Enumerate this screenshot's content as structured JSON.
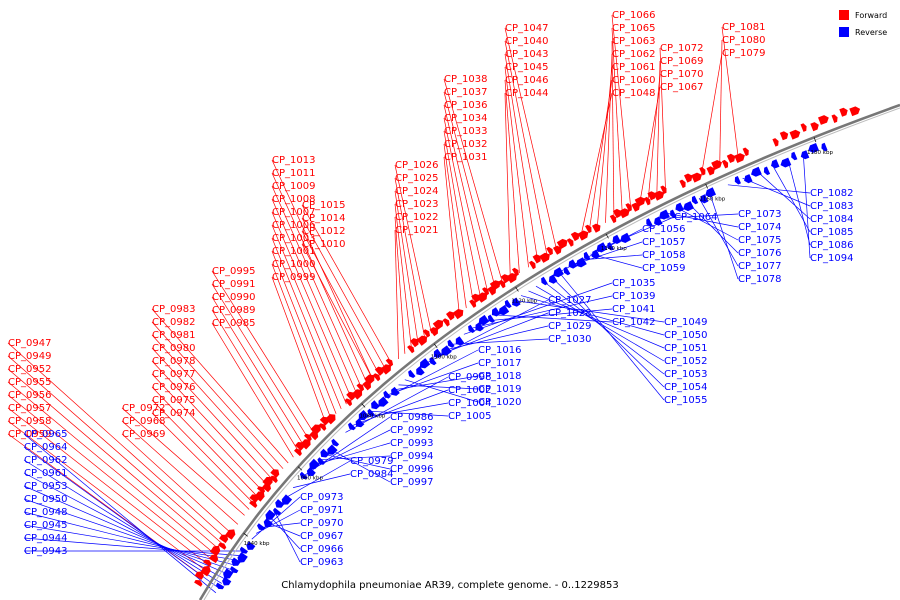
{
  "title": "Chlamydophila pneumoniae AR39, complete genome. - 0..1229853",
  "legend": [
    {
      "label": "Forward",
      "color": "#ff0000"
    },
    {
      "label": "Reverse",
      "color": "#0000ff"
    }
  ],
  "colors": {
    "forward": "#ff0000",
    "reverse": "#0000ff",
    "backbone": "#777777"
  },
  "ticks": [
    "1040 kbp",
    "1060 kbp",
    "1080 kbp",
    "1100 kbp",
    "1120 kbp",
    "1140 kbp",
    "1160 kbp",
    "1180 kbp"
  ],
  "forward_labels": [
    "CP_0959",
    "CP_0958",
    "CP_0957",
    "CP_0956",
    "CP_0955",
    "CP_0952",
    "CP_0949",
    "CP_0947",
    "CP_0969",
    "CP_0968",
    "CP_0972",
    "CP_0974",
    "CP_0975",
    "CP_0976",
    "CP_0977",
    "CP_0978",
    "CP_0980",
    "CP_0981",
    "CP_0982",
    "CP_0983",
    "CP_0985",
    "CP_0989",
    "CP_0990",
    "CP_0991",
    "CP_0995",
    "CP_0999",
    "CP_1000",
    "CP_1001",
    "CP_1003",
    "CP_1006",
    "CP_1007",
    "CP_1008",
    "CP_1009",
    "CP_1011",
    "CP_1013",
    "CP_1010",
    "CP_1012",
    "CP_1014",
    "CP_1015",
    "CP_1021",
    "CP_1022",
    "CP_1023",
    "CP_1024",
    "CP_1025",
    "CP_1026",
    "CP_1031",
    "CP_1032",
    "CP_1033",
    "CP_1034",
    "CP_1036",
    "CP_1037",
    "CP_1038",
    "CP_1044",
    "CP_1046",
    "CP_1045",
    "CP_1043",
    "CP_1040",
    "CP_1047",
    "CP_1048",
    "CP_1060",
    "CP_1061",
    "CP_1062",
    "CP_1063",
    "CP_1065",
    "CP_1066",
    "CP_1067",
    "CP_1070",
    "CP_1069",
    "CP_1072",
    "CP_1079",
    "CP_1080",
    "CP_1081"
  ],
  "reverse_labels": [
    "CP_0965",
    "CP_0964",
    "CP_0962",
    "CP_0961",
    "CP_0953",
    "CP_0950",
    "CP_0948",
    "CP_0945",
    "CP_0944",
    "CP_0943",
    "CP_0973",
    "CP_0971",
    "CP_0970",
    "CP_0967",
    "CP_0966",
    "CP_0963",
    "CP_0979",
    "CP_0984",
    "CP_0986",
    "CP_0992",
    "CP_0993",
    "CP_0994",
    "CP_0996",
    "CP_0997",
    "CP_0998",
    "CP_1002",
    "CP_1004",
    "CP_1005",
    "CP_1016",
    "CP_1017",
    "CP_1018",
    "CP_1019",
    "CP_1020",
    "CP_1027",
    "CP_1028",
    "CP_1029",
    "CP_1030",
    "CP_1035",
    "CP_1039",
    "CP_1041",
    "CP_1042",
    "CP_1049",
    "CP_1050",
    "CP_1051",
    "CP_1052",
    "CP_1053",
    "CP_1054",
    "CP_1055",
    "CP_1056",
    "CP_1057",
    "CP_1058",
    "CP_1059",
    "CP_1064",
    "CP_1073",
    "CP_1074",
    "CP_1075",
    "CP_1076",
    "CP_1077",
    "CP_1078",
    "CP_1082",
    "CP_1083",
    "CP_1084",
    "CP_1085",
    "CP_1086",
    "CP_1094"
  ]
}
